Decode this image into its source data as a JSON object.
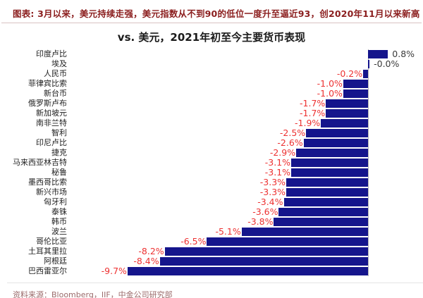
{
  "header": {
    "caption": "图表: 3月以来，美元持续走强，美元指数从不到90的低位一度升至逼近93，创2020年11月以来新高"
  },
  "chart_data": {
    "type": "bar",
    "orientation": "horizontal",
    "title": "vs. 美元，2021年初至今主要货币表现",
    "categories": [
      "印度卢比",
      "埃及",
      "人民币",
      "菲律宾比索",
      "新台币",
      "俄罗斯卢布",
      "新加坡元",
      "南非兰特",
      "智利",
      "印尼卢比",
      "捷克",
      "马来西亚林吉特",
      "秘鲁",
      "墨西哥比索",
      "新兴市场",
      "匈牙利",
      "泰铢",
      "韩币",
      "波兰",
      "哥伦比亚",
      "土耳其里拉",
      "阿根廷",
      "巴西雷亚尔"
    ],
    "values": [
      0.8,
      -0.0,
      -0.2,
      -1.0,
      -1.0,
      -1.7,
      -1.7,
      -1.9,
      -2.5,
      -2.6,
      -2.9,
      -3.1,
      -3.1,
      -3.3,
      -3.3,
      -3.4,
      -3.6,
      -3.8,
      -5.1,
      -6.5,
      -8.2,
      -8.4,
      -9.7
    ],
    "labels": [
      "0.8%",
      "-0.0%",
      "-0.2%",
      "-1.0%",
      "-1.0%",
      "-1.7%",
      "-1.7%",
      "-1.9%",
      "-2.5%",
      "-2.6%",
      "-2.9%",
      "-3.1%",
      "-3.1%",
      "-3.3%",
      "-3.3%",
      "-3.4%",
      "-3.6%",
      "-3.8%",
      "-5.1%",
      "-6.5%",
      "-8.2%",
      "-8.4%",
      "-9.7%"
    ],
    "xlim": [
      -12,
      2.1
    ],
    "grid": false,
    "legend": false,
    "bar_color": "#15158C",
    "positive_label_color": "#3A3A3A",
    "negative_label_color": "#ED3232"
  },
  "footer": {
    "source": "资料来源：Bloomberg，IIF，中金公司研究部"
  }
}
